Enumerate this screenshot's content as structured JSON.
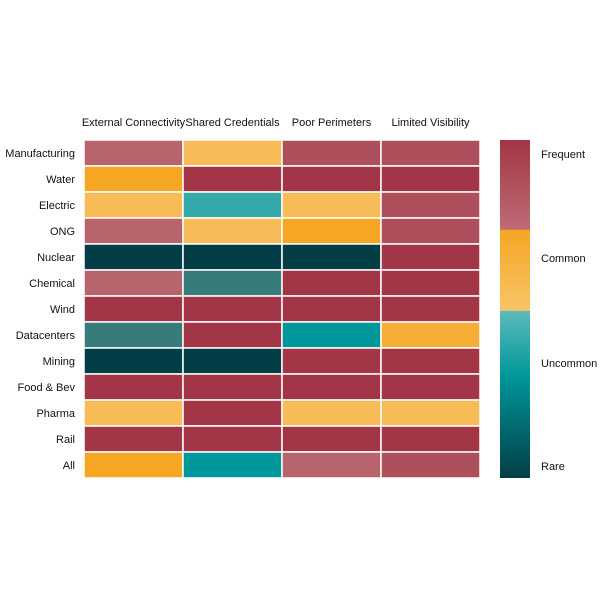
{
  "chart_data": {
    "type": "heatmap",
    "title": "",
    "columns": [
      "External Connectivity",
      "Shared Credentials",
      "Poor Perimeters",
      "Limited Visibility"
    ],
    "rows": [
      "Manufacturing",
      "Water",
      "Electric",
      "ONG",
      "Nuclear",
      "Chemical",
      "Wind",
      "Datacenters",
      "Mining",
      "Food & Bev",
      "Pharma",
      "Rail",
      "All"
    ],
    "value_scale": "0 = Rare, 1.33 = Uncommon, 2.67 = Common, 4 = Frequent",
    "values": [
      [
        3.3,
        2.4,
        3.6,
        3.6
      ],
      [
        2.9,
        4.0,
        4.0,
        4.0
      ],
      [
        2.4,
        1.8,
        2.4,
        3.6
      ],
      [
        3.3,
        2.4,
        2.9,
        3.6
      ],
      [
        0.1,
        0.1,
        0.1,
        4.0
      ],
      [
        3.3,
        0.7,
        4.0,
        4.0
      ],
      [
        4.0,
        4.0,
        4.0,
        4.0
      ],
      [
        0.7,
        4.0,
        1.4,
        2.5
      ],
      [
        0.1,
        0.1,
        4.0,
        4.0
      ],
      [
        4.0,
        4.0,
        4.0,
        4.0
      ],
      [
        2.4,
        4.0,
        2.4,
        2.4
      ],
      [
        4.0,
        4.0,
        4.0,
        4.0
      ],
      [
        2.9,
        1.4,
        3.3,
        3.6
      ]
    ],
    "levels": [
      {
        "value": 4.0,
        "color": "#a33646"
      },
      {
        "value": 3.6,
        "color": "#ae505b"
      },
      {
        "value": 3.3,
        "color": "#b8646d"
      },
      {
        "value": 2.9,
        "color": "#f5a623"
      },
      {
        "value": 2.5,
        "color": "#f6ae37"
      },
      {
        "value": 2.4,
        "color": "#f7bb58"
      },
      {
        "value": 1.8,
        "color": "#35a9aa"
      },
      {
        "value": 1.4,
        "color": "#00979a"
      },
      {
        "value": 0.7,
        "color": "#387b7b"
      },
      {
        "value": 0.1,
        "color": "#033e46"
      }
    ],
    "legend": {
      "placement": "right",
      "labels": [
        "Frequent",
        "Common",
        "Uncommon",
        "Rare"
      ]
    }
  }
}
